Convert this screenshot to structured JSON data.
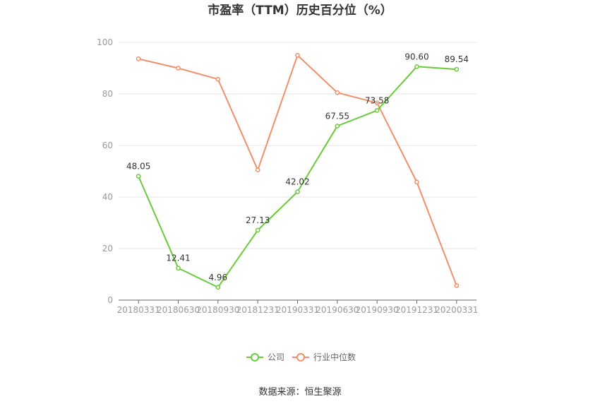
{
  "chart_data": {
    "type": "line",
    "title": "市盈率（TTM）历史百分位（%）",
    "xlabel": "",
    "ylabel": "",
    "x": [
      "20180331",
      "20180630",
      "20180930",
      "20181231",
      "20190331",
      "20190630",
      "20190930",
      "20191231",
      "20200331"
    ],
    "ylim": [
      0,
      100
    ],
    "yticks": [
      0,
      20,
      40,
      60,
      80,
      100
    ],
    "grid": true,
    "legend_position": "bottom-center",
    "series": [
      {
        "name": "公司",
        "color": "#6acb3a",
        "values": [
          48.05,
          12.41,
          4.96,
          27.13,
          42.02,
          67.55,
          73.58,
          90.6,
          89.54
        ],
        "labels": [
          "48.05",
          "12.41",
          "4.96",
          "27.13",
          "42.02",
          "67.55",
          "73.58",
          "90.60",
          "89.54"
        ]
      },
      {
        "name": "行业中位数",
        "color": "#f0906a",
        "values": [
          93.6,
          90.0,
          85.7,
          50.5,
          95.0,
          80.5,
          76.5,
          45.8,
          5.6
        ]
      }
    ]
  },
  "source": "数据来源：恒生聚源"
}
